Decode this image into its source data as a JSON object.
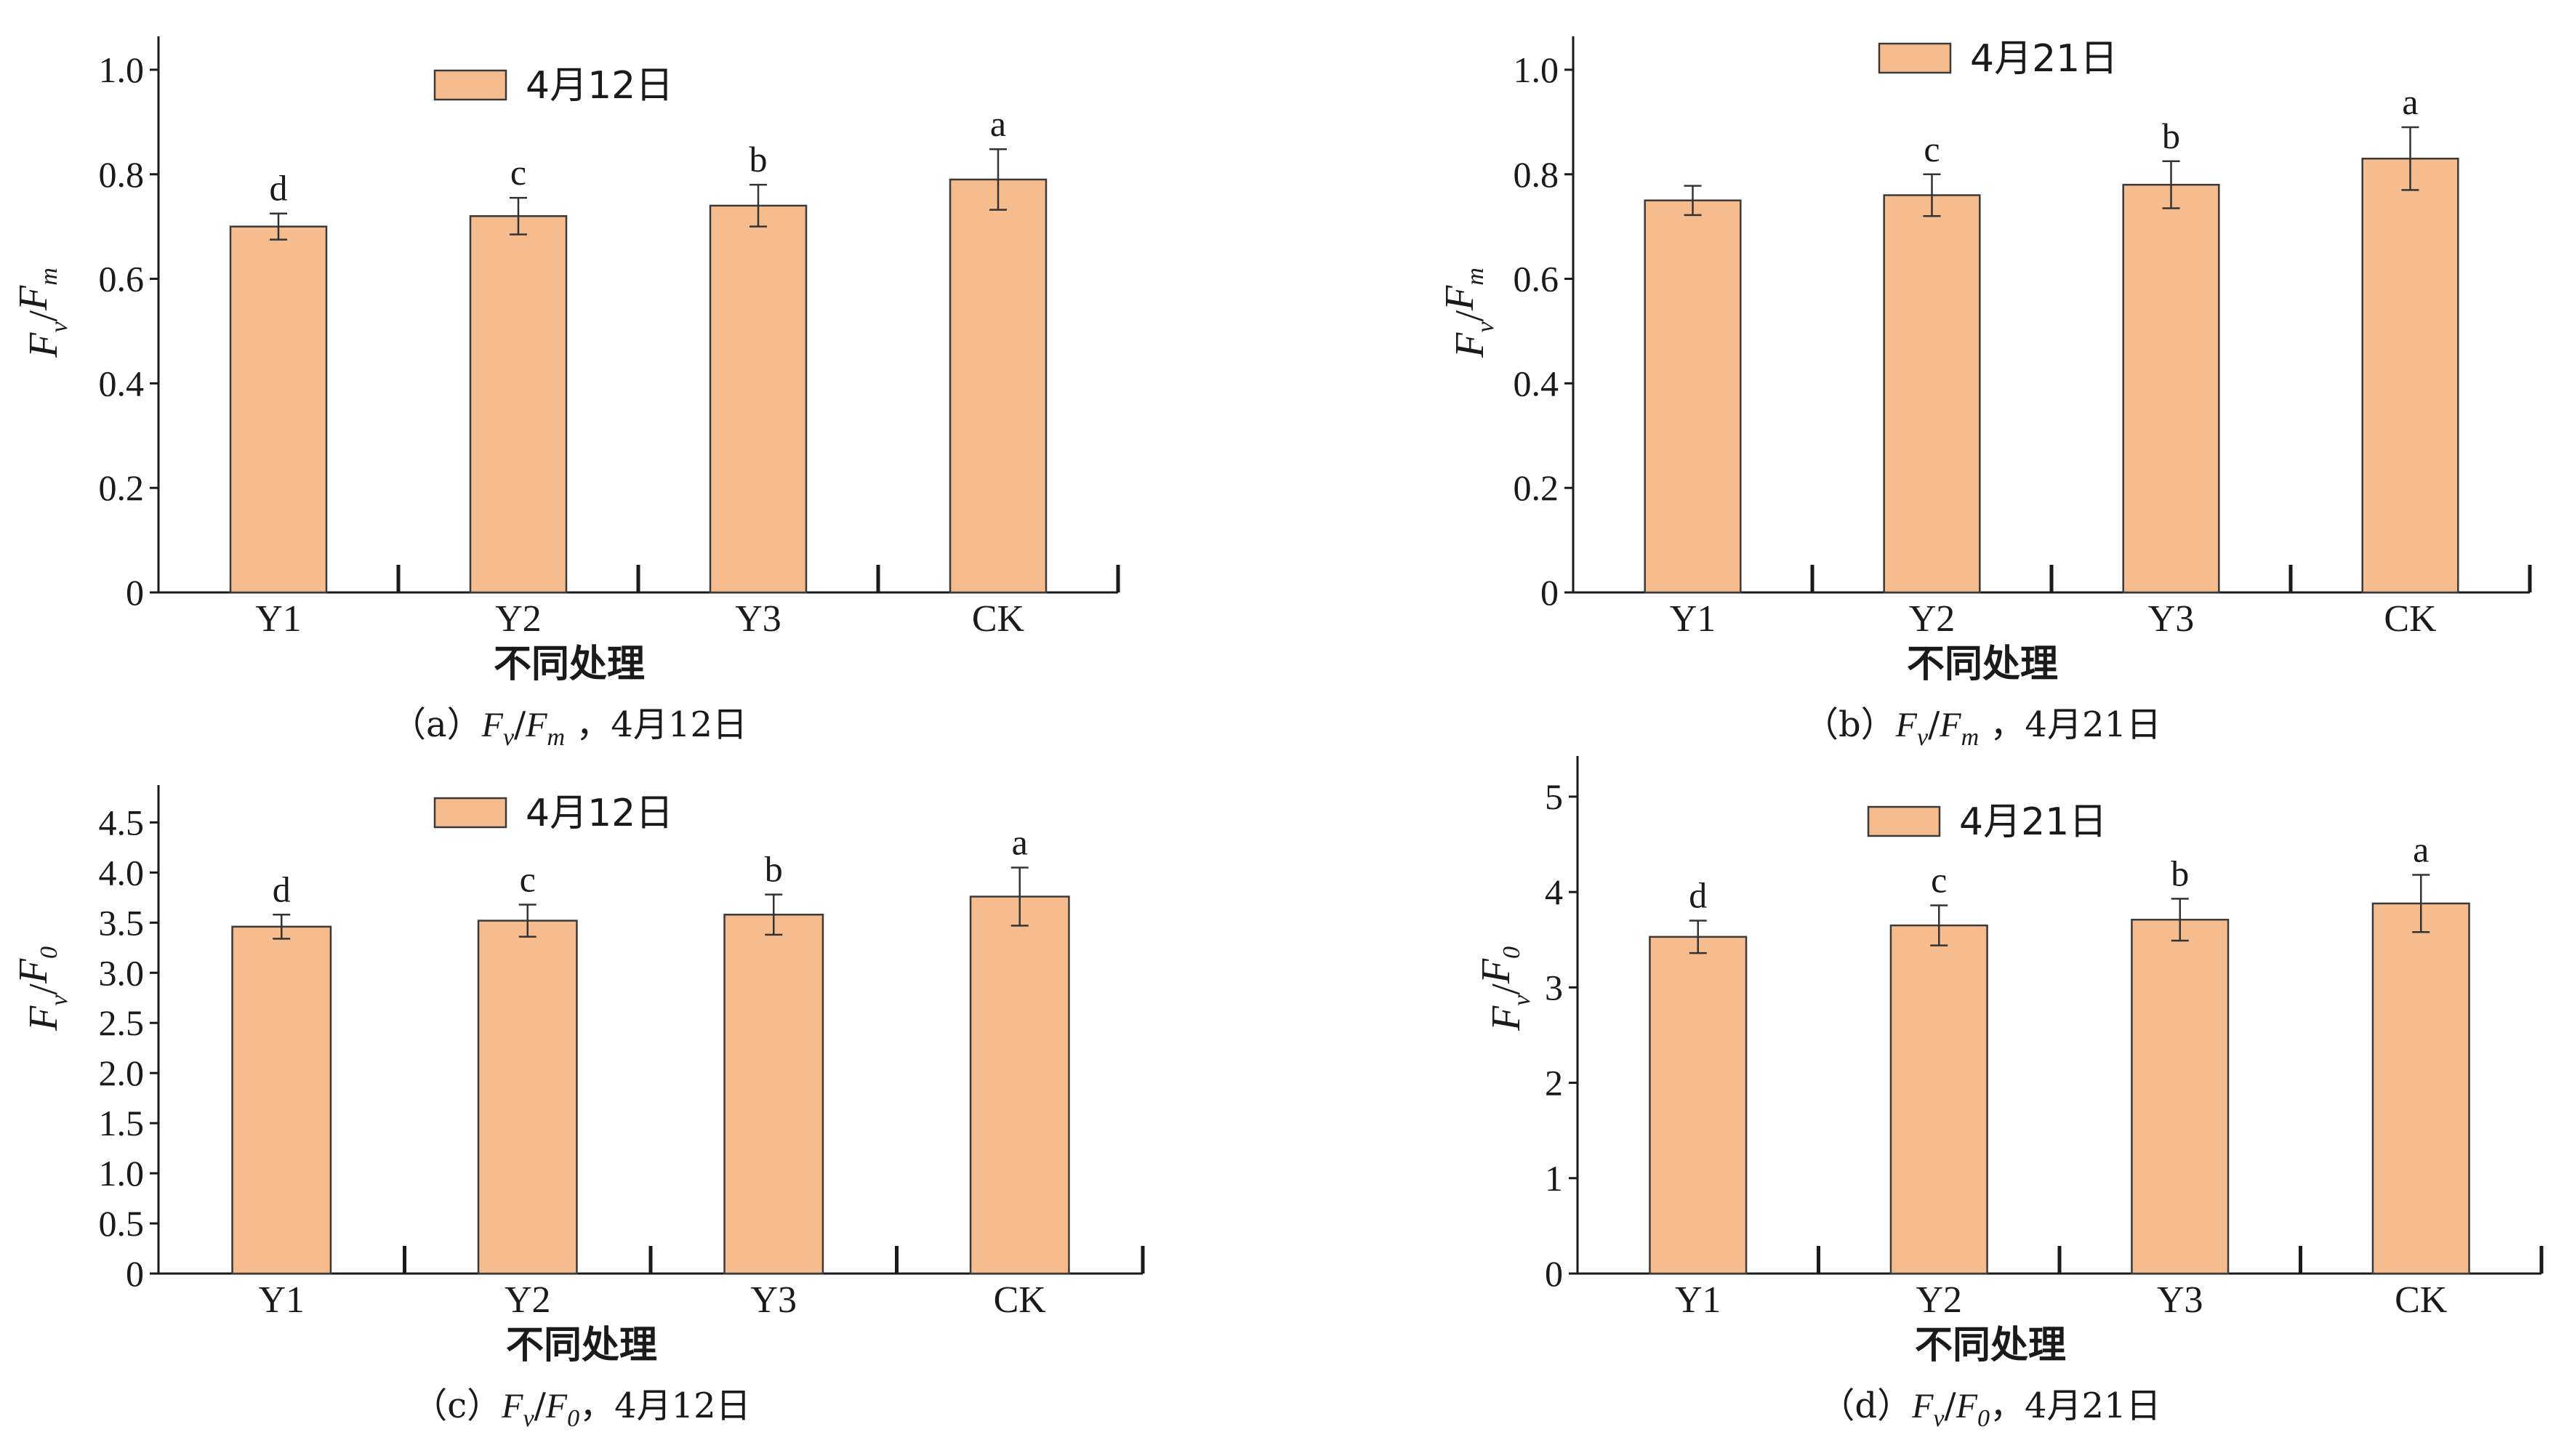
{
  "colors": {
    "bar_fill": "#f6bc8e",
    "bar_stroke": "#3a3a3a",
    "axis": "#1a1a1a"
  },
  "chart_data": [
    {
      "type": "bar",
      "x_title": "不同处理",
      "legend": "4月12日",
      "legend_position": "top-center",
      "categories": [
        "Y1",
        "Y2",
        "Y3",
        "CK"
      ],
      "values": [
        0.7,
        0.72,
        0.74,
        0.79
      ],
      "errors": [
        0.025,
        0.035,
        0.04,
        0.058
      ],
      "significance": [
        "d",
        "c",
        "b",
        "a"
      ],
      "ylim": [
        0,
        1.05
      ],
      "yticks": [
        "0",
        "0.2",
        "0.4",
        "0.6",
        "0.8",
        "1.0"
      ],
      "ylabel": {
        "F1": "F",
        "s1": "v",
        "sep": "/",
        "F2": "F",
        "s2": "m"
      },
      "caption": {
        "prefix": "（a）",
        "F1": "F",
        "s1": "v",
        "sep": "/",
        "F2": "F",
        "s2": "m",
        "suffix": " ，4月12日"
      },
      "grid": false
    },
    {
      "type": "bar",
      "x_title": "不同处理",
      "legend": "4月21日",
      "legend_position": "top-center",
      "categories": [
        "Y1",
        "Y2",
        "Y3",
        "CK"
      ],
      "values": [
        0.75,
        0.76,
        0.78,
        0.83
      ],
      "errors": [
        0.028,
        0.04,
        0.045,
        0.06
      ],
      "significance": [
        "",
        "c",
        "b",
        "a"
      ],
      "ylim": [
        0,
        1.05
      ],
      "yticks": [
        "0",
        "0.2",
        "0.4",
        "0.6",
        "0.8",
        "1.0"
      ],
      "ylabel": {
        "F1": "F",
        "s1": "v",
        "sep": "/",
        "F2": "F",
        "s2": "m"
      },
      "caption": {
        "prefix": "（b）",
        "F1": "F",
        "s1": "v",
        "sep": "/",
        "F2": "F",
        "s2": "m",
        "suffix": " ，4月21日"
      },
      "grid": false
    },
    {
      "type": "bar",
      "x_title": "不同处理",
      "legend": "4月12日",
      "legend_position": "top-center",
      "categories": [
        "Y1",
        "Y2",
        "Y3",
        "CK"
      ],
      "values": [
        3.46,
        3.52,
        3.58,
        3.76
      ],
      "errors": [
        0.12,
        0.16,
        0.2,
        0.29
      ],
      "significance": [
        "d",
        "c",
        "b",
        "a"
      ],
      "ylim": [
        0,
        4.8
      ],
      "yticks": [
        "0",
        "0.5",
        "1.0",
        "1.5",
        "2.0",
        "2.5",
        "3.0",
        "3.5",
        "4.0",
        "4.5"
      ],
      "ylabel": {
        "F1": "F",
        "s1": "v",
        "sep": "/",
        "F2": "F",
        "s2": "0"
      },
      "caption": {
        "prefix": "（c）",
        "F1": "F",
        "s1": "v",
        "sep": "/",
        "F2": "F",
        "s2": "0",
        "suffix": "，4月12日"
      },
      "grid": false
    },
    {
      "type": "bar",
      "x_title": "不同处理",
      "legend": "4月21日",
      "legend_position": "top-center",
      "categories": [
        "Y1",
        "Y2",
        "Y3",
        "CK"
      ],
      "values": [
        3.53,
        3.65,
        3.71,
        3.88
      ],
      "errors": [
        0.17,
        0.21,
        0.22,
        0.3
      ],
      "significance": [
        "d",
        "c",
        "b",
        "a"
      ],
      "ylim": [
        0,
        5.35
      ],
      "yticks": [
        "0",
        "1",
        "2",
        "3",
        "4",
        "5"
      ],
      "ylabel": {
        "F1": "F",
        "s1": "v",
        "sep": "/",
        "F2": "F",
        "s2": "0"
      },
      "caption": {
        "prefix": "（d）",
        "F1": "F",
        "s1": "v",
        "sep": "/",
        "F2": "F",
        "s2": "0",
        "suffix": "，4月21日"
      },
      "grid": false
    }
  ]
}
